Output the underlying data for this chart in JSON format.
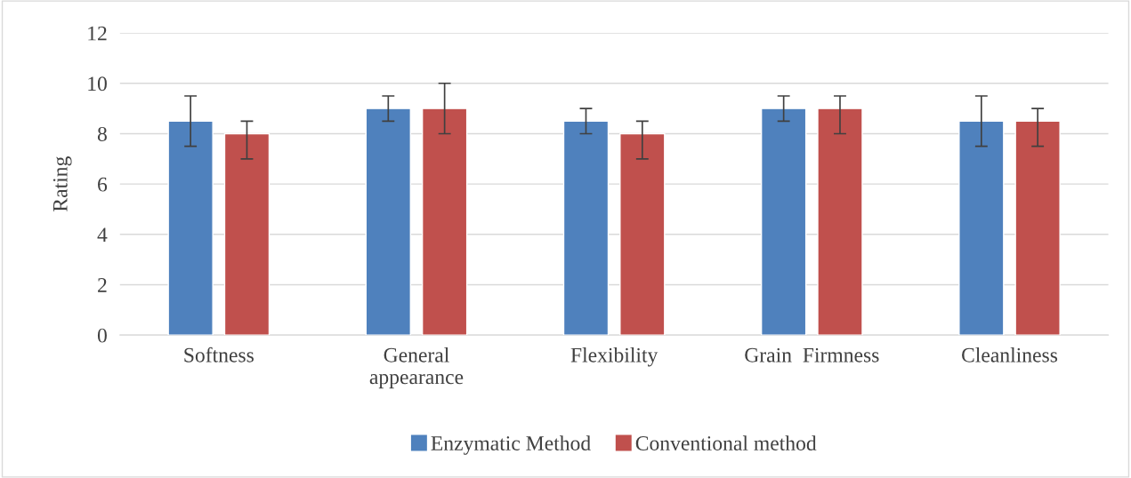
{
  "chart_data": {
    "type": "bar",
    "ylabel": "Rating",
    "categories": [
      "Softness",
      "General appearance",
      "Flexibility",
      "Grain  Firmness",
      "Cleanliness"
    ],
    "series": [
      {
        "name": "Enzymatic Method",
        "color": "#4f81bd",
        "values": [
          8.5,
          9,
          8.5,
          9,
          8.5
        ],
        "errors": [
          [
            7.5,
            9.5
          ],
          [
            8.5,
            9.5
          ],
          [
            8,
            9
          ],
          [
            8.5,
            9.5
          ],
          [
            7.5,
            9.5
          ]
        ]
      },
      {
        "name": "Conventional method",
        "color": "#c0504d",
        "values": [
          8,
          9,
          8,
          9,
          8.5
        ],
        "errors": [
          [
            7,
            8.5
          ],
          [
            8,
            10
          ],
          [
            7,
            8.5
          ],
          [
            8,
            9.5
          ],
          [
            7.5,
            9
          ]
        ]
      }
    ],
    "ylim": [
      0,
      12
    ],
    "yticks": [
      0,
      2,
      4,
      6,
      8,
      10,
      12
    ],
    "grid": "y",
    "legend": "bottom"
  }
}
